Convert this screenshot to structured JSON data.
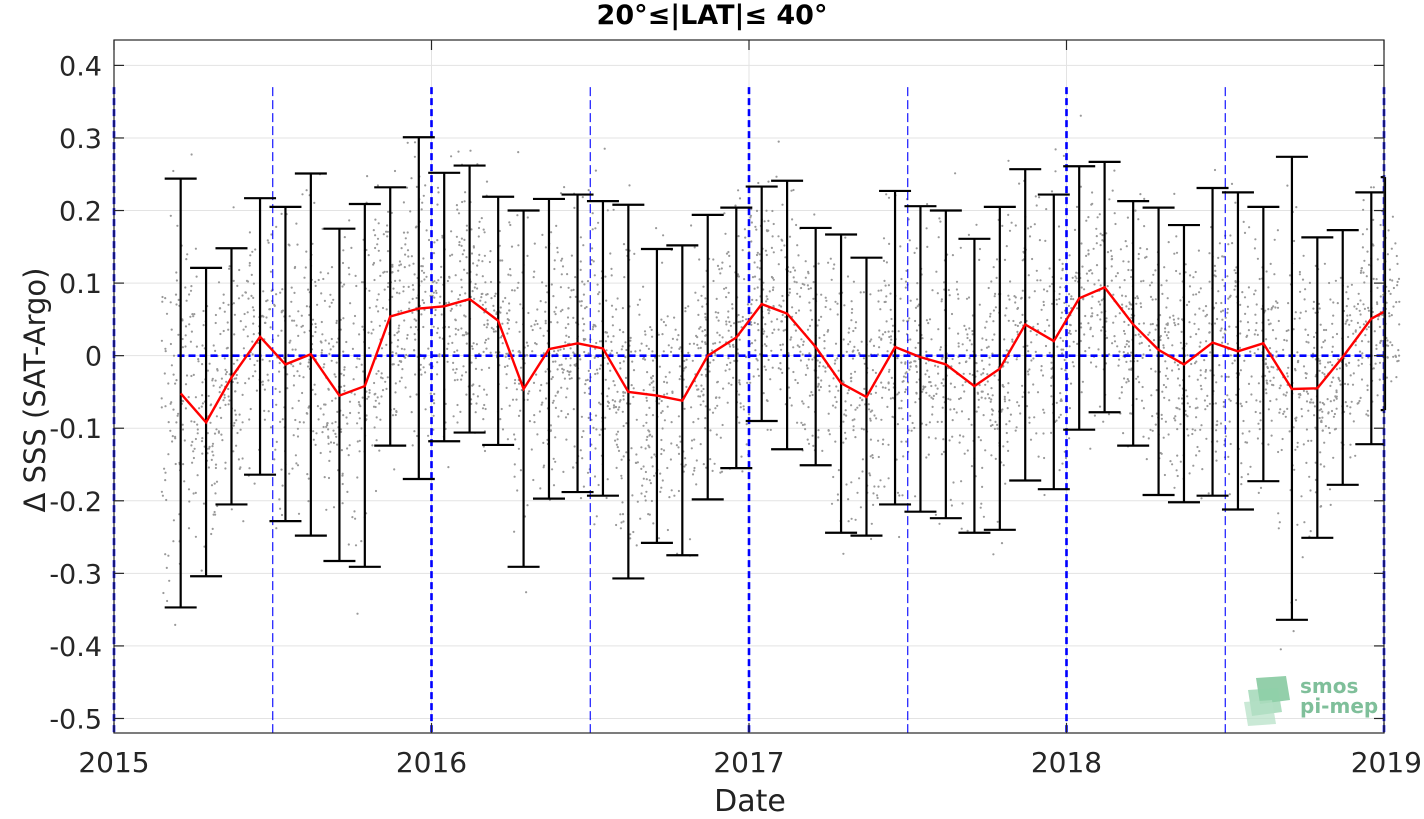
{
  "chart_data": {
    "type": "line",
    "title": "20°≤|LAT|≤ 40°",
    "xlabel": "Date",
    "ylabel": "Δ SSS (SAT-Argo)",
    "xlim": [
      2015.0,
      2019.0
    ],
    "ylim": [
      -0.52,
      0.435
    ],
    "x_ticks": [
      2015,
      2016,
      2017,
      2018,
      2019
    ],
    "y_ticks": [
      0.4,
      0.3,
      0.2,
      0.1,
      0,
      -0.1,
      -0.2,
      -0.3,
      -0.4,
      -0.5
    ],
    "y_tick_labels": [
      "0.4",
      "0.3",
      "0.2",
      "0.1",
      "0",
      "-0.1",
      "-0.2",
      "-0.3",
      "-0.4",
      "-0.5"
    ],
    "grid": true,
    "colors": {
      "mean_line": "#ff0000",
      "error_bars": "#000000",
      "reference": "#0000ff",
      "scatter": "#999999"
    },
    "series": [
      {
        "x": [
          2015.21,
          2015.29,
          2015.37,
          2015.46,
          2015.54,
          2015.62,
          2015.71,
          2015.79,
          2015.87,
          2015.96,
          2016.04,
          2016.12,
          2016.21,
          2016.29,
          2016.37,
          2016.46,
          2016.54,
          2016.62,
          2016.71,
          2016.79,
          2016.87,
          2016.96,
          2017.04,
          2017.12,
          2017.21,
          2017.29,
          2017.37,
          2017.46,
          2017.54,
          2017.62,
          2017.71,
          2017.79,
          2017.87,
          2017.96,
          2018.04,
          2018.12,
          2018.21,
          2018.29,
          2018.37,
          2018.46,
          2018.54,
          2018.62,
          2018.71,
          2018.79,
          2018.87,
          2018.96,
          2019.04
        ],
        "mean": [
          -0.052,
          -0.092,
          -0.03,
          0.026,
          -0.012,
          0.002,
          -0.055,
          -0.042,
          0.054,
          0.065,
          0.068,
          0.078,
          0.048,
          -0.046,
          0.009,
          0.017,
          0.01,
          -0.05,
          -0.055,
          -0.062,
          0.0,
          0.025,
          0.071,
          0.058,
          0.012,
          -0.038,
          -0.057,
          0.012,
          -0.002,
          -0.012,
          -0.042,
          -0.018,
          0.043,
          0.02,
          0.079,
          0.094,
          0.043,
          0.008,
          -0.012,
          0.018,
          0.006,
          0.017,
          -0.046,
          -0.045,
          -0.002,
          0.051,
          0.07
        ],
        "upper": [
          0.244,
          0.121,
          0.148,
          0.217,
          0.205,
          0.251,
          0.175,
          0.209,
          0.232,
          0.301,
          0.252,
          0.262,
          0.219,
          0.2,
          0.216,
          0.222,
          0.213,
          0.208,
          0.147,
          0.152,
          0.194,
          0.204,
          0.233,
          0.241,
          0.176,
          0.167,
          0.135,
          0.227,
          0.206,
          0.2,
          0.161,
          0.205,
          0.257,
          0.222,
          0.261,
          0.267,
          0.213,
          0.204,
          0.18,
          0.231,
          0.225,
          0.205,
          0.274,
          0.163,
          0.173,
          0.225,
          0.246
        ],
        "lower": [
          -0.347,
          -0.304,
          -0.205,
          -0.164,
          -0.228,
          -0.248,
          -0.283,
          -0.291,
          -0.124,
          -0.17,
          -0.118,
          -0.106,
          -0.123,
          -0.291,
          -0.197,
          -0.188,
          -0.193,
          -0.307,
          -0.258,
          -0.275,
          -0.198,
          -0.155,
          -0.09,
          -0.129,
          -0.151,
          -0.244,
          -0.248,
          -0.205,
          -0.215,
          -0.224,
          -0.244,
          -0.24,
          -0.172,
          -0.184,
          -0.102,
          -0.078,
          -0.124,
          -0.192,
          -0.202,
          -0.193,
          -0.212,
          -0.173,
          -0.364,
          -0.251,
          -0.178,
          -0.122,
          -0.075
        ]
      }
    ],
    "reference_line_y": 0,
    "logo_text": [
      "smos",
      "pi-mep"
    ]
  }
}
